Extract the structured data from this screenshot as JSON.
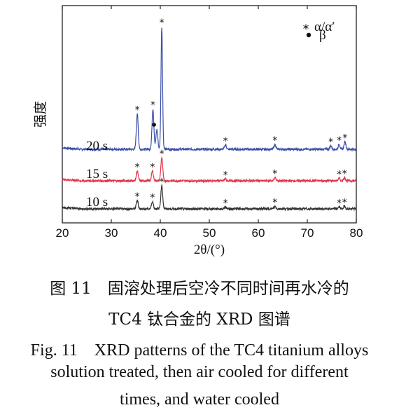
{
  "chart_data": {
    "type": "line",
    "xlabel": "2θ/(°)",
    "ylabel": "强度",
    "xlim": [
      20,
      80
    ],
    "x_ticks": [
      "20",
      "30",
      "40",
      "50",
      "60",
      "70",
      "80"
    ],
    "legend": {
      "placement": "top-right",
      "items": [
        {
          "symbol": "asterisk",
          "label": "α/α′"
        },
        {
          "symbol": "filled-circle",
          "label": "β"
        }
      ]
    },
    "series": [
      {
        "name": "20 s",
        "color": "#3a4fa8",
        "peaks": [
          {
            "x": 35.3,
            "height": 0.29,
            "label": "*"
          },
          {
            "x": 38.5,
            "height": 0.33,
            "label": "*"
          },
          {
            "x": 39.3,
            "height": 0.16,
            "label": "•"
          },
          {
            "x": 40.3,
            "height": 1.0,
            "label": "*"
          },
          {
            "x": 53.3,
            "height": 0.035,
            "label": "*"
          },
          {
            "x": 63.4,
            "height": 0.04,
            "label": "*"
          },
          {
            "x": 74.8,
            "height": 0.03,
            "label": "*"
          },
          {
            "x": 76.5,
            "height": 0.04,
            "label": "*"
          },
          {
            "x": 77.7,
            "height": 0.06,
            "label": "*"
          }
        ]
      },
      {
        "name": "15 s",
        "color": "#e0354a",
        "peaks": [
          {
            "x": 35.3,
            "height": 0.08,
            "label": "*"
          },
          {
            "x": 38.4,
            "height": 0.08,
            "label": "*"
          },
          {
            "x": 40.3,
            "height": 0.19,
            "label": "*"
          },
          {
            "x": 53.3,
            "height": 0.015,
            "label": "*"
          },
          {
            "x": 63.4,
            "height": 0.025,
            "label": "*"
          },
          {
            "x": 76.5,
            "height": 0.02,
            "label": "*"
          },
          {
            "x": 77.6,
            "height": 0.025,
            "label": "*"
          }
        ]
      },
      {
        "name": "10 s",
        "color": "#333333",
        "peaks": [
          {
            "x": 35.3,
            "height": 0.07,
            "label": "*"
          },
          {
            "x": 38.4,
            "height": 0.06,
            "label": "*"
          },
          {
            "x": 40.3,
            "height": 0.19,
            "label": "*"
          },
          {
            "x": 53.3,
            "height": 0.015,
            "label": "*"
          },
          {
            "x": 63.4,
            "height": 0.02,
            "label": "*"
          },
          {
            "x": 76.5,
            "height": 0.015,
            "label": "*"
          },
          {
            "x": 77.6,
            "height": 0.02,
            "label": "*"
          }
        ]
      }
    ]
  },
  "caption": {
    "cn_line1": "图 11　固溶处理后空冷不同时间再水冷的",
    "cn_line2": "TC4 钛合金的 XRD 图谱",
    "en_line1": "Fig. 11　XRD patterns of the TC4 titanium alloys",
    "en_line2": "solution treated, then air cooled for different",
    "en_line3": "times, and water cooled"
  }
}
